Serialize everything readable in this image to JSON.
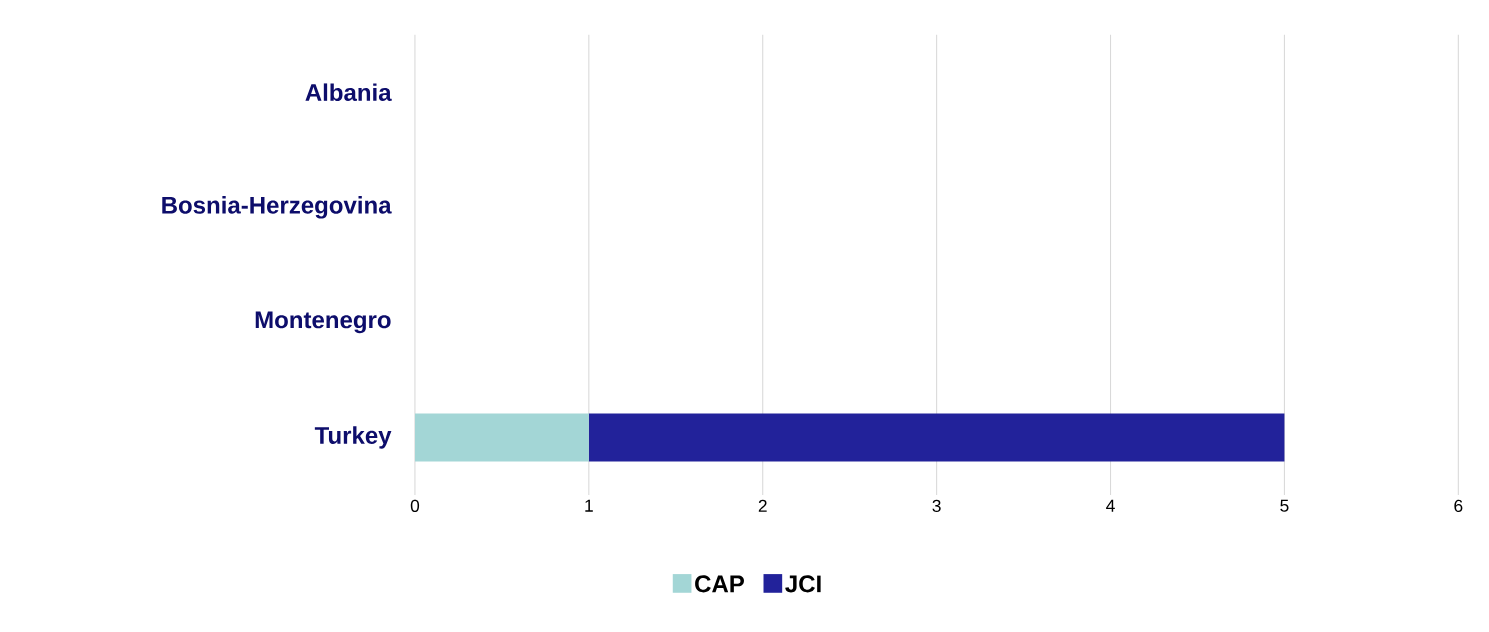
{
  "chart_data": {
    "type": "bar",
    "orientation": "horizontal",
    "stacked": true,
    "categories": [
      "Albania",
      "Bosnia-Herzegovina",
      "Montenegro",
      "Turkey"
    ],
    "series": [
      {
        "name": "CAP",
        "color": "#a3d6d6",
        "values": [
          0,
          0,
          0,
          1
        ]
      },
      {
        "name": "JCI",
        "color": "#22229a",
        "values": [
          0,
          0,
          0,
          4
        ]
      }
    ],
    "xlim": [
      0,
      6
    ],
    "xticks": [
      0,
      1,
      2,
      3,
      4,
      5,
      6
    ],
    "grid": "x",
    "legend": "bottom"
  }
}
